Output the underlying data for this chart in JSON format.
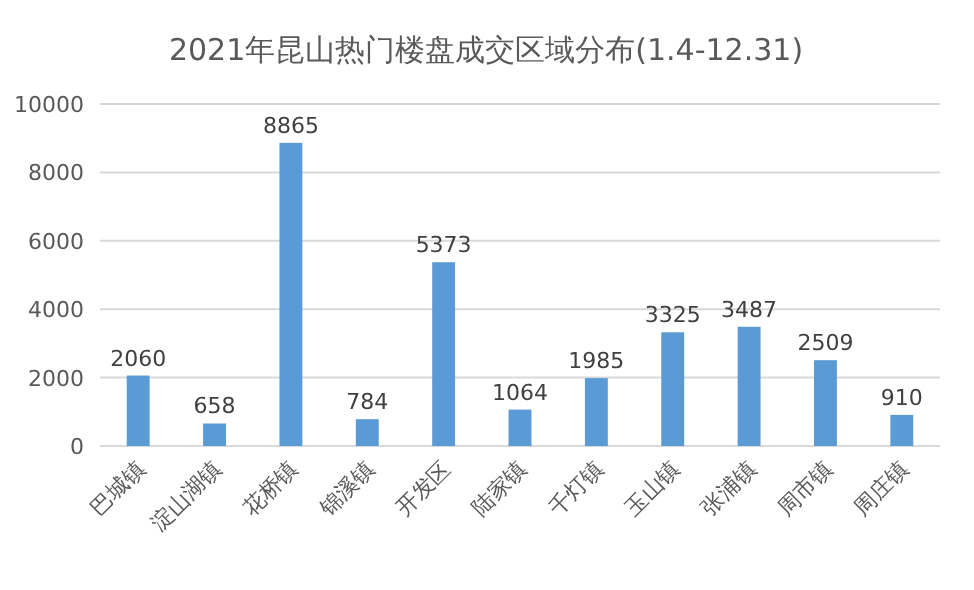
{
  "chart_data": {
    "type": "bar",
    "title": "2021年昆山热门楼盘成交区域分布(1.4-12.31)",
    "categories": [
      "巴城镇",
      "淀山湖镇",
      "花桥镇",
      "锦溪镇",
      "开发区",
      "陆家镇",
      "千灯镇",
      "玉山镇",
      "张浦镇",
      "周市镇",
      "周庄镇"
    ],
    "values": [
      2060,
      658,
      8865,
      784,
      5373,
      1064,
      1985,
      3325,
      3487,
      2509,
      910
    ],
    "color": "#5b9bd5",
    "ylim": [
      0,
      10000
    ],
    "yticks": [
      0,
      2000,
      4000,
      6000,
      8000,
      10000
    ],
    "grid": "y",
    "data_labels": true
  }
}
